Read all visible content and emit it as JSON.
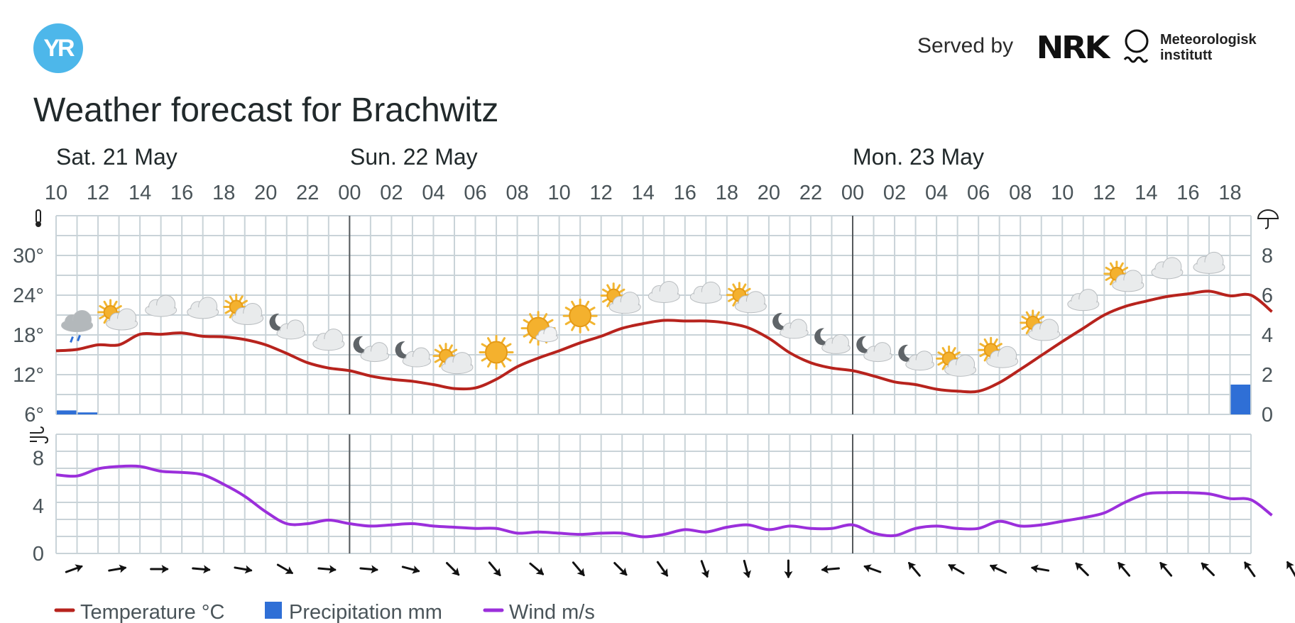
{
  "header": {
    "logo_text": "YR",
    "served_by": "Served by",
    "nrk_logo": "NRK",
    "met_line1": "Meteorologisk",
    "met_line2": "institutt",
    "title": "Weather forecast for Brachwitz"
  },
  "chart_data": {
    "type": "line",
    "days": [
      {
        "label": "Sat. 21 May",
        "start_hour_index": 0
      },
      {
        "label": "Sun. 22 May",
        "start_hour_index": 14
      },
      {
        "label": "Mon. 23 May",
        "start_hour_index": 38
      }
    ],
    "hour_ticks": [
      "10",
      "12",
      "14",
      "16",
      "18",
      "20",
      "22",
      "00",
      "02",
      "04",
      "06",
      "08",
      "10",
      "12",
      "14",
      "16",
      "18",
      "20",
      "22",
      "00",
      "02",
      "04",
      "06",
      "08",
      "10",
      "12",
      "14",
      "16",
      "18"
    ],
    "temperature": {
      "name": "Temperature °C",
      "unit": "°C",
      "ylim": [
        6,
        36
      ],
      "tick_labels": [
        "6°",
        "12°",
        "18°",
        "24°",
        "30°"
      ],
      "tick_values": [
        6,
        12,
        18,
        24,
        30
      ],
      "color": "#b7231d",
      "values": [
        15.6,
        15.8,
        16.5,
        16.5,
        18.1,
        18.1,
        18.3,
        17.8,
        17.7,
        17.3,
        16.5,
        15.2,
        13.8,
        13.0,
        12.6,
        11.8,
        11.3,
        11.0,
        10.5,
        9.9,
        10.0,
        11.3,
        13.2,
        14.5,
        15.6,
        16.8,
        17.8,
        19.0,
        19.7,
        20.2,
        20.1,
        20.1,
        19.8,
        19.1,
        17.5,
        15.3,
        13.8,
        13.0,
        12.6,
        11.8,
        10.9,
        10.5,
        9.8,
        9.5,
        9.5,
        10.8,
        12.8,
        14.9,
        17.0,
        19.0,
        21.0,
        22.3,
        23.1,
        23.8,
        24.2,
        24.6,
        23.9,
        24.0,
        21.5
      ]
    },
    "precipitation": {
      "name": "Precipitation mm",
      "unit": "mm",
      "ylim": [
        0,
        10
      ],
      "tick_labels": [
        "0",
        "2",
        "4",
        "6",
        "8"
      ],
      "tick_values": [
        0,
        2,
        4,
        6,
        8
      ],
      "color": "#2f6fd6",
      "bars": [
        {
          "hour_index": 1,
          "value": 0.2
        },
        {
          "hour_index": 2,
          "value": 0.1
        },
        {
          "hour_index": 57,
          "value": 1.5
        }
      ]
    },
    "wind": {
      "name": "Wind m/s",
      "unit": "m/s",
      "ylim": [
        0,
        10
      ],
      "tick_labels": [
        "0",
        "4",
        "8"
      ],
      "tick_values": [
        0,
        4,
        8
      ],
      "color": "#9b2fdb",
      "values": [
        6.6,
        6.5,
        7.1,
        7.3,
        7.3,
        6.9,
        6.8,
        6.6,
        5.8,
        4.8,
        3.5,
        2.5,
        2.5,
        2.8,
        2.5,
        2.3,
        2.4,
        2.5,
        2.3,
        2.2,
        2.1,
        2.1,
        1.7,
        1.8,
        1.7,
        1.6,
        1.7,
        1.7,
        1.4,
        1.6,
        2.0,
        1.8,
        2.2,
        2.4,
        2.0,
        2.3,
        2.1,
        2.1,
        2.4,
        1.7,
        1.5,
        2.1,
        2.3,
        2.1,
        2.1,
        2.7,
        2.3,
        2.4,
        2.7,
        3.0,
        3.4,
        4.3,
        5.0,
        5.1,
        5.1,
        5.0,
        4.6,
        4.5,
        3.2
      ]
    },
    "weather_symbols": [
      {
        "hour_index": 1,
        "symbol": "cloud-rain"
      },
      {
        "hour_index": 3,
        "symbol": "partly-cloudy-day"
      },
      {
        "hour_index": 5,
        "symbol": "cloudy"
      },
      {
        "hour_index": 7,
        "symbol": "cloudy"
      },
      {
        "hour_index": 9,
        "symbol": "partly-cloudy-day"
      },
      {
        "hour_index": 11,
        "symbol": "partly-cloudy-night"
      },
      {
        "hour_index": 13,
        "symbol": "cloudy"
      },
      {
        "hour_index": 15,
        "symbol": "partly-cloudy-night"
      },
      {
        "hour_index": 17,
        "symbol": "partly-cloudy-night"
      },
      {
        "hour_index": 19,
        "symbol": "partly-cloudy-day"
      },
      {
        "hour_index": 21,
        "symbol": "clear-sky-day"
      },
      {
        "hour_index": 23,
        "symbol": "fair-day"
      },
      {
        "hour_index": 25,
        "symbol": "clear-sky-day"
      },
      {
        "hour_index": 27,
        "symbol": "partly-cloudy-day"
      },
      {
        "hour_index": 29,
        "symbol": "cloudy"
      },
      {
        "hour_index": 31,
        "symbol": "cloudy"
      },
      {
        "hour_index": 33,
        "symbol": "partly-cloudy-day"
      },
      {
        "hour_index": 35,
        "symbol": "partly-cloudy-night"
      },
      {
        "hour_index": 37,
        "symbol": "partly-cloudy-night"
      },
      {
        "hour_index": 39,
        "symbol": "partly-cloudy-night"
      },
      {
        "hour_index": 41,
        "symbol": "partly-cloudy-night"
      },
      {
        "hour_index": 43,
        "symbol": "partly-cloudy-day"
      },
      {
        "hour_index": 45,
        "symbol": "partly-cloudy-day"
      },
      {
        "hour_index": 47,
        "symbol": "partly-cloudy-day"
      },
      {
        "hour_index": 49,
        "symbol": "cloudy"
      },
      {
        "hour_index": 51,
        "symbol": "partly-cloudy-day"
      },
      {
        "hour_index": 53,
        "symbol": "cloudy"
      },
      {
        "hour_index": 55,
        "symbol": "cloudy"
      }
    ],
    "wind_direction_arrows_deg": [
      70,
      80,
      90,
      95,
      100,
      120,
      95,
      95,
      105,
      135,
      140,
      130,
      140,
      135,
      145,
      160,
      165,
      180,
      265,
      290,
      320,
      300,
      295,
      280,
      315,
      320,
      320,
      315,
      325,
      330
    ],
    "legend": [
      {
        "label": "Temperature °C",
        "color": "#b7231d",
        "kind": "line"
      },
      {
        "label": "Precipitation mm",
        "color": "#2f6fd6",
        "kind": "box"
      },
      {
        "label": "Wind m/s",
        "color": "#9b2fdb",
        "kind": "line"
      }
    ],
    "grid": true
  }
}
